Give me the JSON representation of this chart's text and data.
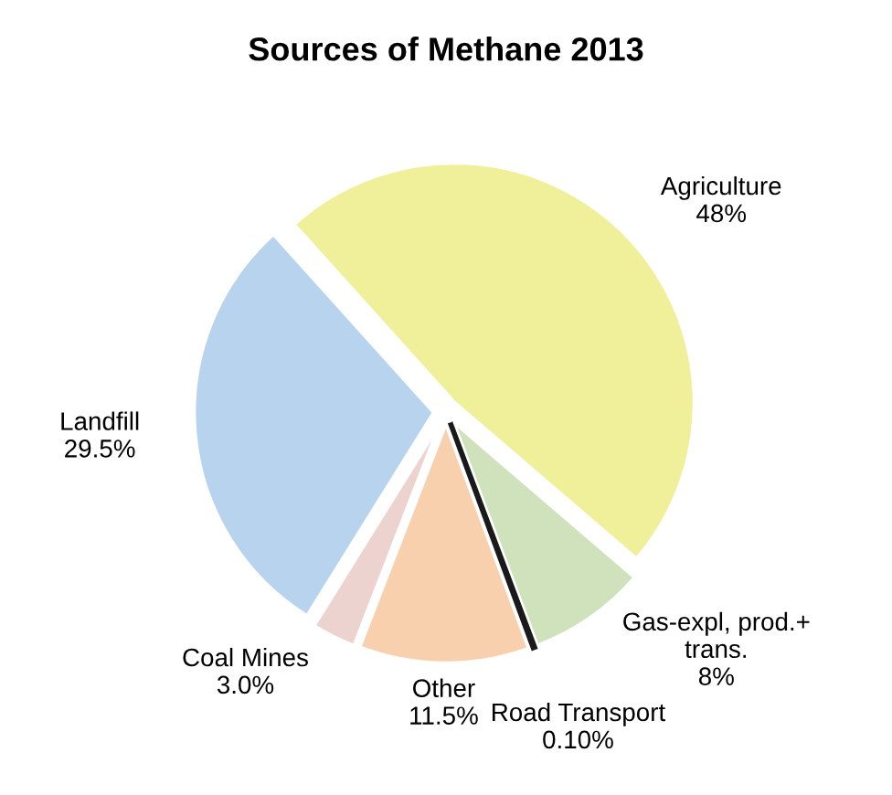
{
  "chart_data": {
    "type": "pie",
    "title": "Sources of Methane 2013",
    "categories": [
      "Agriculture",
      "Gas-expl, prod.+\ntrans.",
      "Road Transport",
      "Other",
      "Coal Mines",
      "Landfill"
    ],
    "values": [
      48,
      8,
      0.1,
      11.5,
      3,
      29.5
    ],
    "value_labels": [
      "48%",
      "8%",
      "0.10%",
      "11.5%",
      "3.0%",
      "29.5%"
    ],
    "colors": [
      "#f0ef9a",
      "#cfe2bb",
      "#1a1a1a",
      "#f9d0ad",
      "#edd3d0",
      "#b8d3ee"
    ],
    "legend": false
  }
}
